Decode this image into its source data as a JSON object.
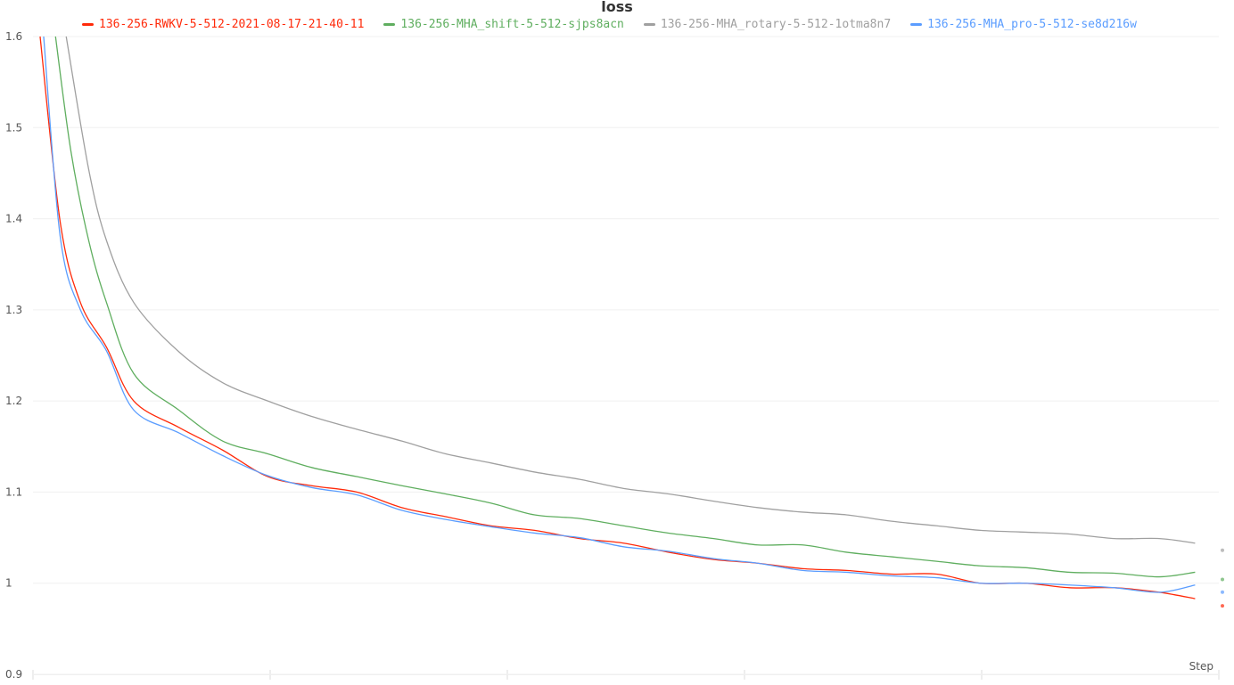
{
  "chart_data": {
    "type": "line",
    "title": "loss",
    "xlabel": "Step",
    "ylabel": "",
    "ylim": [
      0.9,
      1.6
    ],
    "xlim": [
      0,
      100
    ],
    "yticks": [
      "0.9",
      "1",
      "1.1",
      "1.2",
      "1.3",
      "1.4",
      "1.5",
      "1.6"
    ],
    "grid": true,
    "legend": "top",
    "series": [
      {
        "name": "136-256-RWKV-5-512-2021-08-17-21-40-11",
        "color": "#ff2a0a",
        "x": [
          0.6,
          2.3,
          4.0,
          6.2,
          8.5,
          12.3,
          16.0,
          19.8,
          23.5,
          27.3,
          31.1,
          34.8,
          38.6,
          42.3,
          46.1,
          49.8,
          53.6,
          57.4,
          61.1,
          64.9,
          68.6,
          72.4,
          76.2,
          79.9,
          83.7,
          87.4,
          91.2,
          95.0,
          98.0
        ],
        "values": [
          1.6,
          1.396,
          1.308,
          1.259,
          1.2,
          1.171,
          1.146,
          1.117,
          1.107,
          1.1,
          1.083,
          1.073,
          1.063,
          1.058,
          1.049,
          1.044,
          1.034,
          1.026,
          1.022,
          1.016,
          1.014,
          1.01,
          1.01,
          1.0,
          1.0,
          0.995,
          0.995,
          0.99,
          0.983
        ]
      },
      {
        "name": "136-256-MHA_shift-5-512-sjps8acn",
        "color": "#5fae5f",
        "x": [
          1.9,
          3.2,
          4.7,
          6.2,
          8.5,
          12.3,
          16.0,
          19.8,
          23.5,
          27.3,
          31.1,
          34.8,
          38.6,
          42.3,
          46.1,
          49.8,
          53.6,
          57.4,
          61.1,
          64.9,
          68.6,
          72.4,
          76.2,
          79.9,
          83.7,
          87.4,
          91.2,
          95.0,
          98.0
        ],
        "values": [
          1.6,
          1.474,
          1.376,
          1.308,
          1.23,
          1.19,
          1.156,
          1.142,
          1.127,
          1.117,
          1.107,
          1.098,
          1.088,
          1.075,
          1.071,
          1.063,
          1.055,
          1.049,
          1.042,
          1.042,
          1.034,
          1.029,
          1.024,
          1.019,
          1.017,
          1.012,
          1.011,
          1.007,
          1.012
        ]
      },
      {
        "name": "136-256-MHA_rotary-5-512-1otma8n7",
        "color": "#a0a0a0",
        "x": [
          2.8,
          4.7,
          6.2,
          8.5,
          12.3,
          16.0,
          19.8,
          23.5,
          27.3,
          31.1,
          34.8,
          38.6,
          42.3,
          46.1,
          49.8,
          53.6,
          57.4,
          61.1,
          64.9,
          68.6,
          72.4,
          76.2,
          79.9,
          83.7,
          87.4,
          91.2,
          95.0,
          98.0
        ],
        "values": [
          1.6,
          1.454,
          1.376,
          1.308,
          1.254,
          1.22,
          1.2,
          1.183,
          1.169,
          1.156,
          1.142,
          1.132,
          1.122,
          1.114,
          1.104,
          1.098,
          1.09,
          1.083,
          1.078,
          1.075,
          1.068,
          1.063,
          1.058,
          1.056,
          1.054,
          1.049,
          1.049,
          1.044
        ]
      },
      {
        "name": "136-256-MHA_pro-5-512-se8d216w",
        "color": "#5b9dff",
        "x": [
          0.9,
          2.3,
          4.0,
          6.2,
          8.5,
          12.3,
          16.0,
          19.8,
          23.5,
          27.3,
          31.1,
          34.8,
          38.6,
          42.3,
          46.1,
          49.8,
          53.6,
          57.4,
          61.1,
          64.9,
          68.6,
          72.4,
          76.2,
          79.9,
          83.7,
          87.4,
          91.2,
          95.0,
          98.0
        ],
        "values": [
          1.6,
          1.38,
          1.3,
          1.255,
          1.19,
          1.165,
          1.14,
          1.118,
          1.105,
          1.097,
          1.08,
          1.07,
          1.062,
          1.055,
          1.05,
          1.04,
          1.035,
          1.027,
          1.022,
          1.014,
          1.012,
          1.008,
          1.006,
          1.0,
          1.0,
          0.998,
          0.995,
          0.99,
          0.998
        ]
      }
    ]
  }
}
